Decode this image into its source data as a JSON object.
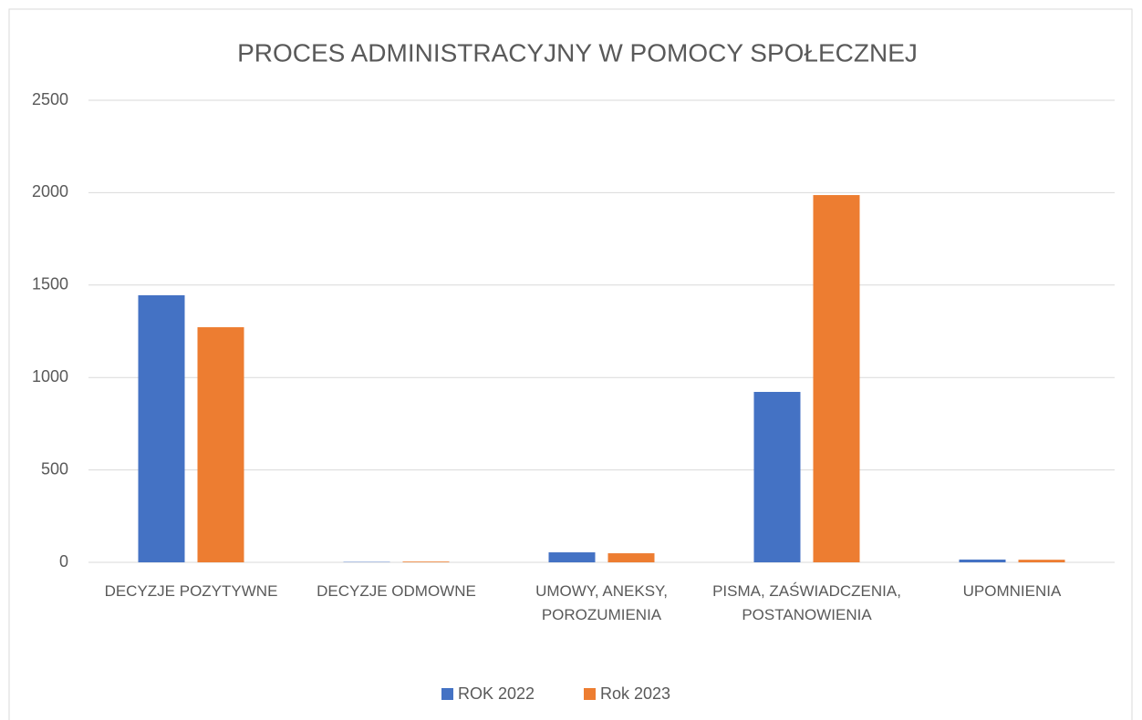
{
  "chart_data": {
    "type": "bar",
    "title": "PROCES ADMINISTRACYJNY W POMOCY SPOŁECZNEJ",
    "categories": [
      "DECYZJE POZYTYWNE",
      "DECYZJE ODMOWNE",
      "UMOWY, ANEKSY, POROZUMIENIA",
      "PISMA, ZAŚWIADCZENIA, POSTANOWIENIA",
      "UPOMNIENIA"
    ],
    "series": [
      {
        "name": "ROK 2022",
        "color": "#4472c4",
        "values": [
          1445,
          2,
          54,
          922,
          15
        ]
      },
      {
        "name": "Rok 2023",
        "color": "#ed7d31",
        "values": [
          1272,
          4,
          49,
          1987,
          14
        ]
      }
    ],
    "ylim": [
      0,
      2500
    ],
    "yticks": [
      0,
      500,
      1000,
      1500,
      2000,
      2500
    ],
    "grid": true,
    "legend": "bottom"
  }
}
